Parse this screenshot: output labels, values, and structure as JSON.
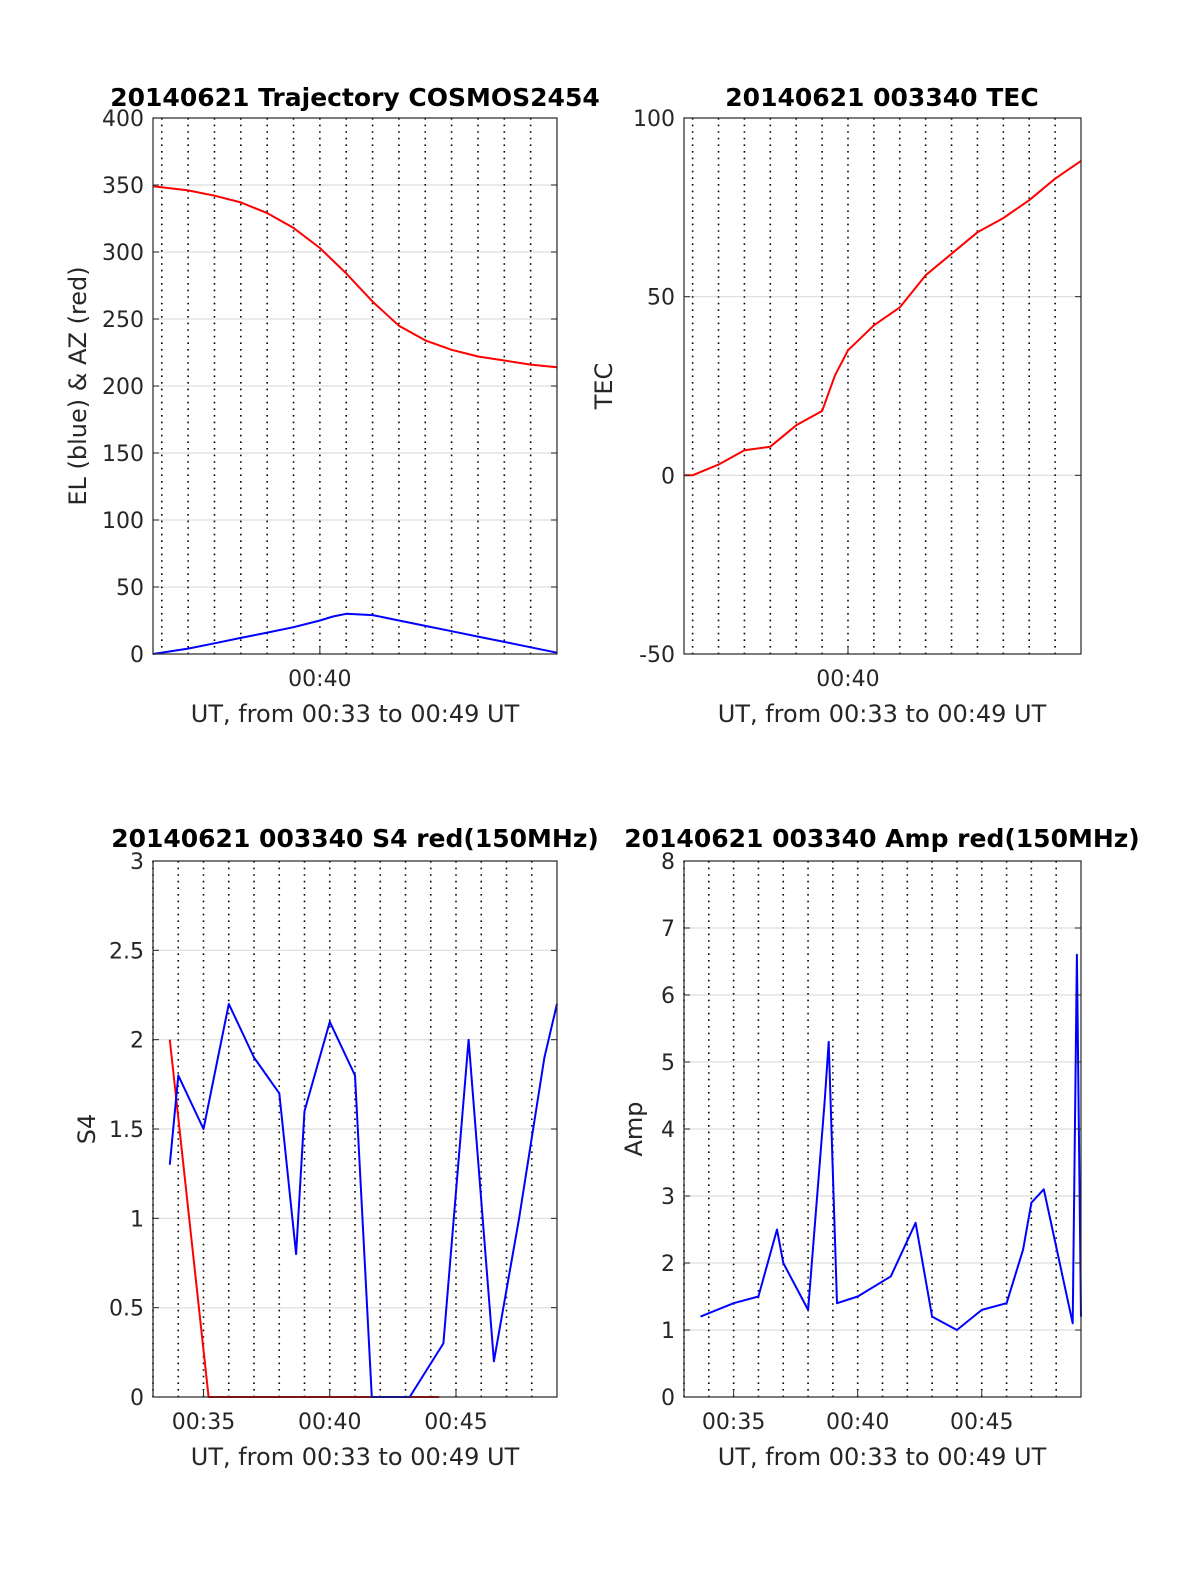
{
  "chart_data": [
    {
      "type": "line",
      "title": "20140621 Trajectory COSMOS2454",
      "xlabel": "UT, from 00:33 to 00:49 UT",
      "ylabel": "EL (blue) & AZ (red)",
      "xlim": [
        "00:33:40",
        "00:49:00"
      ],
      "ylim": [
        0,
        400
      ],
      "xticks": [
        "00:40"
      ],
      "yticks": [
        "0",
        "50",
        "100",
        "150",
        "200",
        "250",
        "300",
        "350",
        "400"
      ],
      "grid": true,
      "series": [
        {
          "color": "#ff0000",
          "x": [
            "00:33:40",
            "00:35:00",
            "00:36:00",
            "00:37:00",
            "00:38:00",
            "00:39:00",
            "00:40:00",
            "00:41:00",
            "00:42:00",
            "00:43:00",
            "00:44:00",
            "00:45:00",
            "00:46:00",
            "00:47:00",
            "00:48:00",
            "00:49:00"
          ],
          "y": [
            349,
            346,
            342,
            337,
            329,
            318,
            303,
            284,
            263,
            245,
            234,
            227,
            222,
            219,
            216,
            214
          ]
        },
        {
          "color": "#0000ff",
          "x": [
            "00:33:40",
            "00:35:00",
            "00:36:00",
            "00:37:00",
            "00:38:00",
            "00:39:00",
            "00:40:00",
            "00:40:30",
            "00:41:00",
            "00:42:00",
            "00:43:00",
            "00:44:00",
            "00:45:00",
            "00:46:00",
            "00:47:00",
            "00:48:00",
            "00:49:00"
          ],
          "y": [
            0,
            4,
            8,
            12,
            16,
            20,
            25,
            28,
            30,
            29,
            25,
            21,
            17,
            13,
            9,
            5,
            1
          ]
        }
      ]
    },
    {
      "type": "line",
      "title": "20140621 003340 TEC",
      "xlabel": "UT, from 00:33 to 00:49 UT",
      "ylabel": "TEC",
      "xlim": [
        "00:33:40",
        "00:49:00"
      ],
      "ylim": [
        -50,
        100
      ],
      "xticks": [
        "00:40"
      ],
      "yticks": [
        "-50",
        "0",
        "50",
        "100"
      ],
      "grid": true,
      "series": [
        {
          "color": "#ff0000",
          "x": [
            "00:33:40",
            "00:34:00",
            "00:35:00",
            "00:36:00",
            "00:37:00",
            "00:38:00",
            "00:39:00",
            "00:39:30",
            "00:40:00",
            "00:41:00",
            "00:42:00",
            "00:43:00",
            "00:44:00",
            "00:45:00",
            "00:46:00",
            "00:47:00",
            "00:48:00",
            "00:49:00"
          ],
          "y": [
            0,
            0,
            3,
            7,
            8,
            14,
            18,
            28,
            35,
            42,
            47,
            56,
            62,
            68,
            72,
            77,
            83,
            88
          ]
        }
      ]
    },
    {
      "type": "line",
      "title": "20140621 003340 S4 red(150MHz)",
      "xlabel": "UT, from 00:33 to 00:49 UT",
      "ylabel": "S4",
      "xlim": [
        "00:33",
        "00:49"
      ],
      "ylim": [
        0,
        3
      ],
      "xticks": [
        "00:35",
        "00:40",
        "00:45"
      ],
      "yticks": [
        "0",
        "0.5",
        "1",
        "1.5",
        "2",
        "2.5",
        "3"
      ],
      "grid": true,
      "series": [
        {
          "color": "#ff0000",
          "x": [
            "00:33:40",
            "00:35:12",
            "00:36:30",
            "00:37:05",
            "00:37:15",
            "00:38:45",
            "00:39:15",
            "00:39:40",
            "00:40:05",
            "00:40:30",
            "00:41:00",
            "00:43:15",
            "00:43:50",
            "00:44:20"
          ],
          "y": [
            2.0,
            0,
            0,
            0,
            0,
            0,
            0,
            0,
            0,
            0,
            0,
            0,
            0,
            0
          ]
        },
        {
          "color": "#0000ff",
          "x": [
            "00:33:40",
            "00:34:00",
            "00:35:00",
            "00:36:00",
            "00:37:00",
            "00:38:00",
            "00:38:40",
            "00:39:00",
            "00:40:00",
            "00:41:00",
            "00:41:40",
            "00:43:10",
            "00:44:30",
            "00:45:30",
            "00:46:30",
            "00:47:30",
            "00:48:30",
            "00:49:00"
          ],
          "y": [
            1.3,
            1.8,
            1.5,
            2.2,
            1.9,
            1.7,
            0.8,
            1.6,
            2.1,
            1.8,
            0,
            0,
            0.3,
            2.0,
            0.2,
            1.0,
            1.9,
            2.2
          ]
        }
      ]
    },
    {
      "type": "line",
      "title": "20140621 003340 Amp red(150MHz)",
      "xlabel": "UT, from 00:33 to 00:49 UT",
      "ylabel": "Amp",
      "xlim": [
        "00:33",
        "00:49"
      ],
      "ylim": [
        0,
        8
      ],
      "xticks": [
        "00:35",
        "00:40",
        "00:45"
      ],
      "yticks": [
        "0",
        "1",
        "2",
        "3",
        "4",
        "5",
        "6",
        "7",
        "8"
      ],
      "grid": true,
      "series": [
        {
          "color": "#0000ff",
          "x": [
            "00:33:40",
            "00:35:00",
            "00:36:00",
            "00:36:45",
            "00:37:00",
            "00:38:00",
            "00:38:40",
            "00:38:50",
            "00:39:10",
            "00:40:00",
            "00:41:20",
            "00:42:20",
            "00:43:00",
            "00:44:00",
            "00:45:00",
            "00:46:00",
            "00:46:40",
            "00:47:00",
            "00:47:30",
            "00:48:40",
            "00:48:50",
            "00:49:00"
          ],
          "y": [
            1.2,
            1.4,
            1.5,
            2.5,
            2.0,
            1.3,
            4.4,
            5.3,
            1.4,
            1.5,
            1.8,
            2.6,
            1.2,
            1.0,
            1.3,
            1.4,
            2.2,
            2.9,
            3.1,
            1.1,
            6.6,
            1.2
          ]
        }
      ]
    }
  ]
}
